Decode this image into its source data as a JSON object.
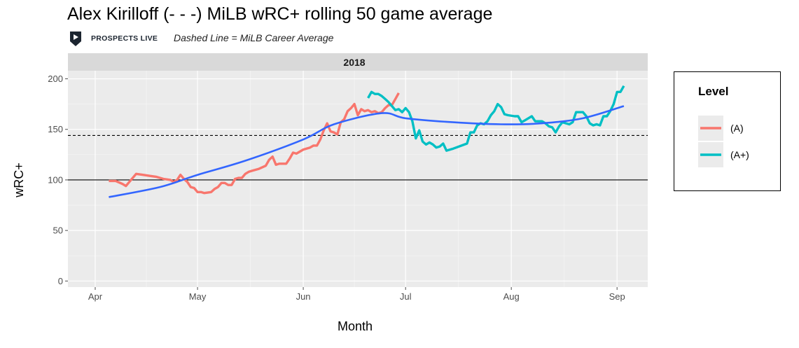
{
  "chart_data": {
    "type": "line",
    "title": "Alex Kirilloff (- - -) MiLB wRC+ rolling 50 game average",
    "subtitle": "Dashed Line = MiLB Career Average",
    "logo_text": "PROSPECTS LIVE",
    "facet_label": "2018",
    "xlabel": "Month",
    "ylabel": "wRC+",
    "x_tick_labels": [
      "Apr",
      "May",
      "Jun",
      "Jul",
      "Aug",
      "Sep"
    ],
    "x_ticks": [
      "2018-04-01",
      "2018-05-01",
      "2018-06-01",
      "2018-07-01",
      "2018-08-01",
      "2018-09-01"
    ],
    "xlim": [
      "2018-03-24",
      "2018-09-10"
    ],
    "y_ticks": [
      0,
      50,
      100,
      150,
      200
    ],
    "ylim": [
      -6,
      208
    ],
    "grid": true,
    "reference_lines": [
      {
        "value": 144,
        "style": "dashed"
      },
      {
        "value": 100,
        "style": "solid"
      }
    ],
    "legend": {
      "title": "Level",
      "placement": "right"
    },
    "series": [
      {
        "name": "(A)",
        "color": "#F8766D",
        "points": [
          [
            "2018-04-05",
            99
          ],
          [
            "2018-04-07",
            99
          ],
          [
            "2018-04-09",
            96
          ],
          [
            "2018-04-10",
            94
          ],
          [
            "2018-04-11",
            98
          ],
          [
            "2018-04-13",
            106
          ],
          [
            "2018-04-15",
            105
          ],
          [
            "2018-04-17",
            104
          ],
          [
            "2018-04-19",
            103
          ],
          [
            "2018-04-21",
            101
          ],
          [
            "2018-04-23",
            100
          ],
          [
            "2018-04-24",
            98
          ],
          [
            "2018-04-25",
            100
          ],
          [
            "2018-04-26",
            105
          ],
          [
            "2018-04-27",
            101
          ],
          [
            "2018-04-28",
            98
          ],
          [
            "2018-04-29",
            93
          ],
          [
            "2018-04-30",
            92
          ],
          [
            "2018-05-01",
            88
          ],
          [
            "2018-05-02",
            88
          ],
          [
            "2018-05-03",
            87
          ],
          [
            "2018-05-05",
            88
          ],
          [
            "2018-05-06",
            91
          ],
          [
            "2018-05-07",
            93
          ],
          [
            "2018-05-08",
            97
          ],
          [
            "2018-05-09",
            97
          ],
          [
            "2018-05-10",
            95
          ],
          [
            "2018-05-11",
            95
          ],
          [
            "2018-05-12",
            101
          ],
          [
            "2018-05-13",
            102
          ],
          [
            "2018-05-14",
            102
          ],
          [
            "2018-05-15",
            106
          ],
          [
            "2018-05-16",
            108
          ],
          [
            "2018-05-17",
            109
          ],
          [
            "2018-05-19",
            111
          ],
          [
            "2018-05-21",
            114
          ],
          [
            "2018-05-22",
            120
          ],
          [
            "2018-05-23",
            123
          ],
          [
            "2018-05-24",
            115
          ],
          [
            "2018-05-25",
            116
          ],
          [
            "2018-05-26",
            116
          ],
          [
            "2018-05-27",
            116
          ],
          [
            "2018-05-28",
            121
          ],
          [
            "2018-05-29",
            127
          ],
          [
            "2018-05-30",
            126
          ],
          [
            "2018-05-31",
            128
          ],
          [
            "2018-06-01",
            130
          ],
          [
            "2018-06-03",
            132
          ],
          [
            "2018-06-04",
            134
          ],
          [
            "2018-06-05",
            134
          ],
          [
            "2018-06-06",
            140
          ],
          [
            "2018-06-07",
            149
          ],
          [
            "2018-06-08",
            156
          ],
          [
            "2018-06-09",
            148
          ],
          [
            "2018-06-10",
            147
          ],
          [
            "2018-06-11",
            145
          ],
          [
            "2018-06-12",
            157
          ],
          [
            "2018-06-13",
            160
          ],
          [
            "2018-06-14",
            168
          ],
          [
            "2018-06-15",
            171
          ],
          [
            "2018-06-16",
            175
          ],
          [
            "2018-06-17",
            164
          ],
          [
            "2018-06-18",
            170
          ],
          [
            "2018-06-19",
            168
          ],
          [
            "2018-06-20",
            169
          ],
          [
            "2018-06-21",
            167
          ],
          [
            "2018-06-22",
            168
          ],
          [
            "2018-06-23",
            166
          ],
          [
            "2018-06-24",
            167
          ],
          [
            "2018-06-25",
            171
          ],
          [
            "2018-06-26",
            174
          ],
          [
            "2018-06-27",
            174
          ],
          [
            "2018-06-28",
            180
          ],
          [
            "2018-06-29",
            186
          ]
        ]
      },
      {
        "name": "(A+)",
        "color": "#00BFC4",
        "points": [
          [
            "2018-06-20",
            181
          ],
          [
            "2018-06-21",
            187
          ],
          [
            "2018-06-22",
            185
          ],
          [
            "2018-06-23",
            185
          ],
          [
            "2018-06-24",
            183
          ],
          [
            "2018-06-25",
            180
          ],
          [
            "2018-06-26",
            177
          ],
          [
            "2018-06-27",
            173
          ],
          [
            "2018-06-28",
            169
          ],
          [
            "2018-06-29",
            170
          ],
          [
            "2018-06-30",
            167
          ],
          [
            "2018-07-01",
            171
          ],
          [
            "2018-07-02",
            167
          ],
          [
            "2018-07-03",
            158
          ],
          [
            "2018-07-04",
            141
          ],
          [
            "2018-07-05",
            149
          ],
          [
            "2018-07-06",
            138
          ],
          [
            "2018-07-07",
            135
          ],
          [
            "2018-07-08",
            137
          ],
          [
            "2018-07-09",
            135
          ],
          [
            "2018-07-10",
            132
          ],
          [
            "2018-07-11",
            133
          ],
          [
            "2018-07-12",
            136
          ],
          [
            "2018-07-13",
            129
          ],
          [
            "2018-07-15",
            131
          ],
          [
            "2018-07-19",
            136
          ],
          [
            "2018-07-20",
            147
          ],
          [
            "2018-07-21",
            147
          ],
          [
            "2018-07-22",
            154
          ],
          [
            "2018-07-23",
            156
          ],
          [
            "2018-07-24",
            155
          ],
          [
            "2018-07-25",
            158
          ],
          [
            "2018-07-26",
            164
          ],
          [
            "2018-07-27",
            168
          ],
          [
            "2018-07-28",
            175
          ],
          [
            "2018-07-29",
            172
          ],
          [
            "2018-07-30",
            165
          ],
          [
            "2018-07-31",
            164
          ],
          [
            "2018-08-02",
            163
          ],
          [
            "2018-08-03",
            163
          ],
          [
            "2018-08-04",
            157
          ],
          [
            "2018-08-05",
            159
          ],
          [
            "2018-08-06",
            161
          ],
          [
            "2018-08-07",
            163
          ],
          [
            "2018-08-08",
            158
          ],
          [
            "2018-08-09",
            158
          ],
          [
            "2018-08-10",
            158
          ],
          [
            "2018-08-11",
            156
          ],
          [
            "2018-08-12",
            153
          ],
          [
            "2018-08-13",
            152
          ],
          [
            "2018-08-14",
            147
          ],
          [
            "2018-08-15",
            153
          ],
          [
            "2018-08-16",
            157
          ],
          [
            "2018-08-18",
            155
          ],
          [
            "2018-08-19",
            157
          ],
          [
            "2018-08-20",
            167
          ],
          [
            "2018-08-22",
            167
          ],
          [
            "2018-08-23",
            163
          ],
          [
            "2018-08-24",
            156
          ],
          [
            "2018-08-25",
            154
          ],
          [
            "2018-08-26",
            155
          ],
          [
            "2018-08-27",
            154
          ],
          [
            "2018-08-28",
            163
          ],
          [
            "2018-08-29",
            163
          ],
          [
            "2018-08-30",
            168
          ],
          [
            "2018-08-31",
            175
          ],
          [
            "2018-09-01",
            187
          ],
          [
            "2018-09-02",
            187
          ],
          [
            "2018-09-03",
            193
          ]
        ]
      }
    ],
    "trend": {
      "color": "#3366FF",
      "points": [
        [
          "2018-04-05",
          83
        ],
        [
          "2018-04-20",
          93
        ],
        [
          "2018-05-01",
          105
        ],
        [
          "2018-05-15",
          119
        ],
        [
          "2018-06-01",
          140
        ],
        [
          "2018-06-10",
          155
        ],
        [
          "2018-06-24",
          166
        ],
        [
          "2018-07-01",
          161
        ],
        [
          "2018-07-15",
          157
        ],
        [
          "2018-07-29",
          155
        ],
        [
          "2018-08-10",
          156
        ],
        [
          "2018-08-22",
          161
        ],
        [
          "2018-09-03",
          173
        ]
      ]
    }
  }
}
